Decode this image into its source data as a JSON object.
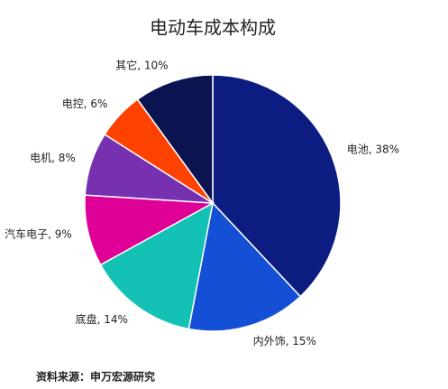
{
  "chart_data": {
    "type": "pie",
    "title": "电动车成本构成",
    "values": [
      38,
      15,
      14,
      9,
      8,
      6,
      10
    ],
    "value_labels": [
      "电池, 38%",
      "内外饰, 15%",
      "底盘, 14%",
      "汽车电子, 9%",
      "电机, 8%",
      "电控, 6%",
      "其它, 10%"
    ],
    "colors": [
      "#0c1c80",
      "#1450d6",
      "#13c1b5",
      "#df0098",
      "#7630b0",
      "#ff4200",
      "#0b1450"
    ],
    "source": "资料来源：申万宏源研究"
  }
}
